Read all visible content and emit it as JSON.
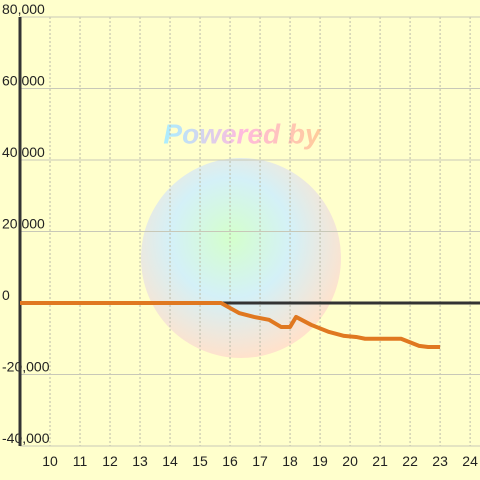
{
  "chart_data": {
    "type": "line",
    "watermark": "Powered by",
    "x": [
      9,
      15.7,
      16.3,
      16.8,
      17.3,
      17.7,
      18.0,
      18.2,
      18.7,
      19.3,
      19.8,
      20.2,
      20.5,
      21.7,
      22.3,
      22.6,
      23.0
    ],
    "series": [
      {
        "color": "#e07820",
        "values": [
          0,
          0,
          -2800,
          -3900,
          -4700,
          -6700,
          -6700,
          -3900,
          -6100,
          -8100,
          -9200,
          -9500,
          -10000,
          -10000,
          -12000,
          -12300,
          -12300
        ]
      }
    ],
    "xlim": [
      9,
      24.33
    ],
    "xticks": [
      10,
      11,
      12,
      13,
      14,
      15,
      16,
      17,
      18,
      19,
      20,
      21,
      22,
      23,
      24
    ],
    "ylim": [
      -40000,
      80000
    ],
    "yticks": [
      {
        "value": -40000,
        "label": "-40,000"
      },
      {
        "value": -20000,
        "label": "-20,000"
      },
      0,
      {
        "value": 20000,
        "label": "20,000"
      },
      {
        "value": 40000,
        "label": "40,000"
      },
      {
        "value": 60000,
        "label": "60,000"
      },
      {
        "value": 80000,
        "label": "80,000"
      }
    ],
    "grid": true
  }
}
